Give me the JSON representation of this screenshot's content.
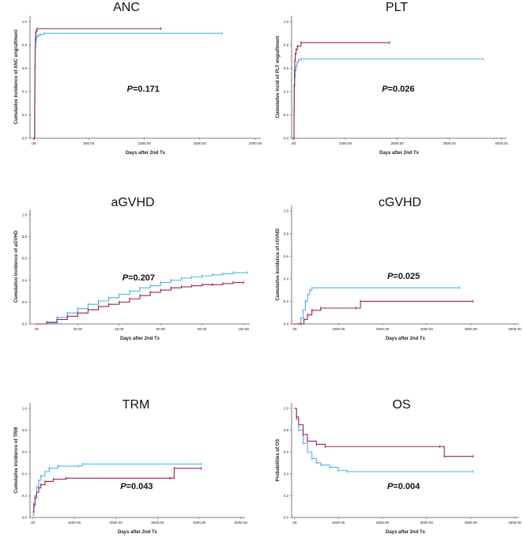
{
  "colors": {
    "blue": "#4fb3ea",
    "red": "#9a2450"
  },
  "chart_data": [
    {
      "type": "line",
      "title": "ANC",
      "xlabel": "Days after 2nd Tx",
      "ylabel": "Cumulative incidence of ANC engraftment",
      "xlim": [
        -30,
        2050
      ],
      "ylim": [
        0,
        1.05
      ],
      "xticks": [
        0,
        500,
        1000,
        1500,
        2000
      ],
      "xtick_labels": [
        ".00",
        "500.00",
        "1000.00",
        "1500.00",
        "2000.00"
      ],
      "yticks": [
        0,
        0.2,
        0.4,
        0.6,
        0.8,
        1.0
      ],
      "ytick_labels": [
        "0.0",
        "0.2",
        "0.4",
        "0.6",
        "0.8",
        "1.0"
      ],
      "p_prefix": "P",
      "p_value": "=0.171",
      "p_pos": "center",
      "series": [
        {
          "name": "blue",
          "color_key": "blue",
          "x": [
            0,
            8,
            10,
            12,
            14,
            16,
            18,
            20,
            25,
            30,
            40,
            60,
            100,
            1700
          ],
          "y": [
            0,
            0,
            0.2,
            0.45,
            0.62,
            0.72,
            0.78,
            0.82,
            0.85,
            0.87,
            0.88,
            0.89,
            0.9,
            0.9
          ]
        },
        {
          "name": "red",
          "color_key": "red",
          "x": [
            0,
            10,
            12,
            14,
            16,
            18,
            20,
            25,
            35,
            1150
          ],
          "y": [
            0,
            0,
            0.3,
            0.6,
            0.78,
            0.86,
            0.9,
            0.92,
            0.94,
            0.94
          ]
        }
      ]
    },
    {
      "type": "line",
      "title": "PLT",
      "xlabel": "Days after 2nd Tx",
      "ylabel": "Cumulative incid      of PLT engraftment",
      "xlim": [
        -30,
        4100
      ],
      "ylim": [
        0,
        1.05
      ],
      "xticks": [
        0,
        1000,
        2000,
        3000,
        4000
      ],
      "xtick_labels": [
        ".00",
        "1000.00",
        "2000.00",
        "3000.00",
        "4000.00"
      ],
      "yticks": [
        0,
        0.2,
        0.4,
        0.6,
        0.8,
        1.0
      ],
      "ytick_labels": [
        "0.0",
        "0.2",
        "0.4",
        "0.6",
        "0.8",
        "1.0"
      ],
      "p_prefix": "P",
      "p_value": "=0.026",
      "p_pos": "center",
      "series": [
        {
          "name": "blue",
          "color_key": "blue",
          "x": [
            0,
            12,
            16,
            20,
            25,
            30,
            40,
            55,
            75,
            100,
            150,
            3650
          ],
          "y": [
            0,
            0,
            0.2,
            0.35,
            0.45,
            0.52,
            0.58,
            0.62,
            0.65,
            0.67,
            0.68,
            0.68
          ]
        },
        {
          "name": "red",
          "color_key": "red",
          "x": [
            0,
            12,
            16,
            20,
            25,
            30,
            40,
            55,
            80,
            150,
            1850
          ],
          "y": [
            0,
            0,
            0.25,
            0.45,
            0.58,
            0.66,
            0.72,
            0.76,
            0.79,
            0.82,
            0.82
          ]
        }
      ]
    },
    {
      "type": "line",
      "title": "aGVHD",
      "xlabel": "Days after 2nd Tx",
      "ylabel": "Cumulative incidence of aGVHD",
      "xlim": [
        -3,
        103
      ],
      "ylim": [
        0,
        1.05
      ],
      "xticks": [
        0,
        20,
        40,
        60,
        80,
        100
      ],
      "xtick_labels": [
        ".00",
        "20.00",
        "40.00",
        "60.00",
        "80.00",
        "100.00"
      ],
      "yticks": [
        0,
        0.2,
        0.4,
        0.6,
        0.8,
        1.0
      ],
      "ytick_labels": [
        "0.0",
        "0.2",
        "0.4",
        "0.6",
        "0.8",
        "1.0"
      ],
      "p_prefix": "P",
      "p_value": "=0.207",
      "p_pos": "center",
      "series": [
        {
          "name": "blue",
          "color_key": "blue",
          "x": [
            0,
            5,
            10,
            15,
            20,
            25,
            30,
            35,
            40,
            45,
            50,
            55,
            60,
            65,
            70,
            75,
            80,
            85,
            90,
            95,
            102
          ],
          "y": [
            0,
            0.02,
            0.06,
            0.1,
            0.14,
            0.18,
            0.21,
            0.24,
            0.27,
            0.3,
            0.33,
            0.35,
            0.38,
            0.4,
            0.42,
            0.43,
            0.44,
            0.45,
            0.46,
            0.47,
            0.47
          ]
        },
        {
          "name": "red",
          "color_key": "red",
          "x": [
            0,
            5,
            10,
            15,
            20,
            25,
            30,
            35,
            40,
            45,
            50,
            55,
            60,
            65,
            70,
            75,
            80,
            85,
            90,
            95,
            100
          ],
          "y": [
            0,
            0.01,
            0.04,
            0.07,
            0.1,
            0.13,
            0.16,
            0.18,
            0.2,
            0.23,
            0.26,
            0.29,
            0.31,
            0.33,
            0.34,
            0.35,
            0.36,
            0.36,
            0.37,
            0.38,
            0.38
          ]
        }
      ]
    },
    {
      "type": "line",
      "title": "cGVHD",
      "xlabel": "Days after 2nd Tx",
      "ylabel": "Cumulative incidence of cGVHD",
      "xlim": [
        -60,
        5100
      ],
      "ylim": [
        0,
        1.05
      ],
      "xticks": [
        0,
        1000,
        2000,
        3000,
        4000,
        5000
      ],
      "xtick_labels": [
        ".00",
        "1000.00",
        "2000.00",
        "3000.00",
        "4000.00",
        "5000.00"
      ],
      "yticks": [
        0,
        0.2,
        0.4,
        0.6,
        0.8,
        1.0
      ],
      "ytick_labels": [
        "0.0",
        "0.2",
        "0.4",
        "0.6",
        "0.8",
        "1.0"
      ],
      "p_prefix": "P",
      "p_value": "=0.025",
      "p_pos": "center",
      "series": [
        {
          "name": "blue",
          "color_key": "blue",
          "x": [
            0,
            100,
            150,
            200,
            250,
            300,
            350,
            400,
            3750
          ],
          "y": [
            0,
            0,
            0.05,
            0.12,
            0.2,
            0.26,
            0.3,
            0.32,
            0.32
          ]
        },
        {
          "name": "red",
          "color_key": "red",
          "x": [
            0,
            150,
            220,
            300,
            400,
            600,
            1400,
            1500,
            4050
          ],
          "y": [
            0,
            0,
            0.04,
            0.08,
            0.12,
            0.14,
            0.14,
            0.2,
            0.2
          ]
        }
      ]
    },
    {
      "type": "line",
      "title": "TRM",
      "xlabel": "Days after 2nd Tx",
      "ylabel": "Cumulative incidence of TRM",
      "xlim": [
        -60,
        5100
      ],
      "ylim": [
        0,
        1.05
      ],
      "xticks": [
        0,
        1000,
        2000,
        3000,
        4000,
        5000
      ],
      "xtick_labels": [
        ".00",
        "1000.00",
        "2000.00",
        "3000.00",
        "4000.00",
        "5000.00"
      ],
      "yticks": [
        0,
        0.2,
        0.4,
        0.6,
        0.8,
        1.0
      ],
      "ytick_labels": [
        "0.0",
        "0.2",
        "0.4",
        "0.6",
        "0.8",
        "1.0"
      ],
      "p_prefix": "P",
      "p_value": "=0.043",
      "p_pos": "bottom",
      "series": [
        {
          "name": "blue",
          "color_key": "blue",
          "x": [
            0,
            30,
            60,
            100,
            150,
            200,
            300,
            400,
            600,
            1100,
            1200,
            4050
          ],
          "y": [
            0.02,
            0.1,
            0.2,
            0.28,
            0.34,
            0.38,
            0.42,
            0.45,
            0.47,
            0.47,
            0.49,
            0.49
          ]
        },
        {
          "name": "red",
          "color_key": "red",
          "x": [
            0,
            30,
            60,
            100,
            150,
            200,
            300,
            500,
            800,
            3300,
            3400,
            4050
          ],
          "y": [
            0.05,
            0.12,
            0.18,
            0.23,
            0.27,
            0.3,
            0.33,
            0.35,
            0.36,
            0.36,
            0.45,
            0.45
          ]
        }
      ]
    },
    {
      "type": "line",
      "title": "OS",
      "xlabel": "Days after 2nd Tx",
      "ylabel": "Probabilities of OS",
      "xlim": [
        -60,
        5100
      ],
      "ylim": [
        0,
        1.05
      ],
      "xticks": [
        0,
        1000,
        2000,
        3000,
        4000,
        5000
      ],
      "xtick_labels": [
        ".00",
        "1000.00",
        "2000.00",
        "3000.00",
        "4000.00",
        "5000.00"
      ],
      "yticks": [
        0,
        0.2,
        0.4,
        0.6,
        0.8,
        1.0
      ],
      "ytick_labels": [
        "0.0",
        "0.2",
        "0.4",
        "0.6",
        "0.8",
        "1.0"
      ],
      "p_prefix": "P",
      "p_value": "=0.004",
      "p_pos": "bottom",
      "series": [
        {
          "name": "blue",
          "color_key": "blue",
          "x": [
            0,
            50,
            100,
            200,
            300,
            400,
            500,
            600,
            800,
            1000,
            1200,
            4050
          ],
          "y": [
            1.0,
            0.9,
            0.8,
            0.68,
            0.6,
            0.54,
            0.5,
            0.48,
            0.46,
            0.43,
            0.42,
            0.42
          ]
        },
        {
          "name": "red",
          "color_key": "red",
          "x": [
            0,
            50,
            100,
            200,
            300,
            500,
            700,
            3300,
            3400,
            4050
          ],
          "y": [
            1.0,
            0.92,
            0.85,
            0.76,
            0.7,
            0.67,
            0.65,
            0.65,
            0.56,
            0.56
          ]
        }
      ]
    }
  ]
}
